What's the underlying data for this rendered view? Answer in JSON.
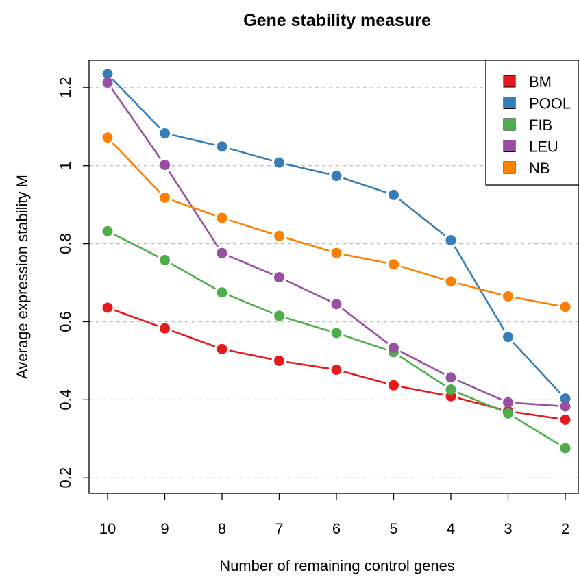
{
  "chart_data": {
    "type": "line",
    "title": "Gene stability measure",
    "xlabel": "Number of remaining control genes",
    "ylabel": "Average expression stability M",
    "categories": [
      "10",
      "9",
      "8",
      "7",
      "6",
      "5",
      "4",
      "3",
      "2"
    ],
    "ylim": [
      0.16,
      1.27
    ],
    "yticks": [
      0.2,
      0.4,
      0.6,
      0.8,
      1,
      1.2
    ],
    "ytick_labels": [
      "0.2",
      "0.4",
      "0.6",
      "0.8",
      "1",
      "1.2"
    ],
    "grid": "horizontal dashed",
    "legend_position": "top-right",
    "series": [
      {
        "name": "BM",
        "color": "#e41a1c",
        "values": [
          0.636,
          0.583,
          0.53,
          0.5,
          0.477,
          0.437,
          0.409,
          0.371,
          0.349
        ]
      },
      {
        "name": "POOL",
        "color": "#377eb8",
        "values": [
          1.235,
          1.083,
          1.049,
          1.008,
          0.974,
          0.925,
          0.809,
          0.561,
          0.403
        ]
      },
      {
        "name": "FIB",
        "color": "#4daf4a",
        "values": [
          0.832,
          0.758,
          0.675,
          0.615,
          0.571,
          0.522,
          0.426,
          0.365,
          0.276
        ]
      },
      {
        "name": "LEU",
        "color": "#984ea3",
        "values": [
          1.213,
          1.002,
          0.776,
          0.714,
          0.645,
          0.533,
          0.457,
          0.393,
          0.383
        ]
      },
      {
        "name": "NB",
        "color": "#ff7f00",
        "values": [
          1.072,
          0.918,
          0.866,
          0.82,
          0.776,
          0.747,
          0.703,
          0.665,
          0.638
        ]
      }
    ]
  }
}
